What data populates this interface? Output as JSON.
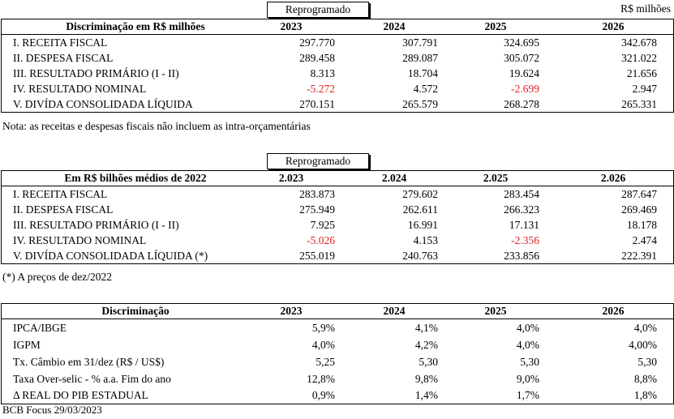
{
  "unit_label": "R$ milhões",
  "t1": {
    "tag": "Reprogramado",
    "header": [
      "Discriminação em R$ milhões",
      "2023",
      "2024",
      "2025",
      "2026"
    ],
    "rows": [
      {
        "label": "I. RECEITA FISCAL",
        "v": [
          "297.770",
          "307.791",
          "324.695",
          "342.678"
        ]
      },
      {
        "label": "II. DESPESA FISCAL",
        "v": [
          "289.458",
          "289.087",
          "305.072",
          "321.022"
        ]
      },
      {
        "label": "III. RESULTADO PRIMÁRIO (I - II)",
        "v": [
          "8.313",
          "18.704",
          "19.624",
          "21.656"
        ]
      },
      {
        "label": "IV. RESULTADO NOMINAL",
        "v": [
          "-5.272",
          "4.572",
          "-2.699",
          "2.947"
        ]
      },
      {
        "label": "V. DIVÍDA CONSOLIDADA LÍQUIDA",
        "v": [
          "270.151",
          "265.579",
          "268.278",
          "265.331"
        ]
      }
    ],
    "note": "Nota: as receitas e despesas fiscais não incluem as intra-orçamentárias"
  },
  "t2": {
    "tag": "Reprogramado",
    "header": [
      "Em R$ bilhões médios de 2022",
      "2.023",
      "2.024",
      "2.025",
      "2.026"
    ],
    "rows": [
      {
        "label": "I. RECEITA FISCAL",
        "v": [
          "283.873",
          "279.602",
          "283.454",
          "287.647"
        ]
      },
      {
        "label": "II. DESPESA FISCAL",
        "v": [
          "275.949",
          "262.611",
          "266.323",
          "269.469"
        ]
      },
      {
        "label": "III. RESULTADO PRIMÁRIO (I - II)",
        "v": [
          "7.925",
          "16.991",
          "17.131",
          "18.178"
        ]
      },
      {
        "label": "IV. RESULTADO NOMINAL",
        "v": [
          "-5.026",
          "4.153",
          "-2.356",
          "2.474"
        ]
      },
      {
        "label": "V. DIVÍDA CONSOLIDADA LÍQUIDA (*)",
        "v": [
          "255.019",
          "240.763",
          "233.856",
          "222.391"
        ]
      }
    ],
    "note": "(*) A preços de dez/2022"
  },
  "t3": {
    "header": [
      "Discriminação",
      "2023",
      "2024",
      "2025",
      "2026"
    ],
    "rows": [
      {
        "label": "IPCA/IBGE",
        "v": [
          "5,9%",
          "4,1%",
          "4,0%",
          "4,0%"
        ]
      },
      {
        "label": "IGPM",
        "v": [
          "4,0%",
          "4,2%",
          "4,0%",
          "4,00%"
        ]
      },
      {
        "label": "Tx. Câmbio em 31/dez (R$ / US$)",
        "v": [
          "5,25",
          "5,30",
          "5,30",
          "5,30"
        ]
      },
      {
        "label": "Taxa Over-selic - % a.a. Fim do ano",
        "v": [
          "12,8%",
          "9,8%",
          "9,0%",
          "8,8%"
        ]
      },
      {
        "label": "Δ REAL DO PIB ESTADUAL",
        "v": [
          "0,9%",
          "1,4%",
          "1,7%",
          "1,8%"
        ]
      }
    ],
    "note": "BCB Focus 29/03/2023"
  }
}
